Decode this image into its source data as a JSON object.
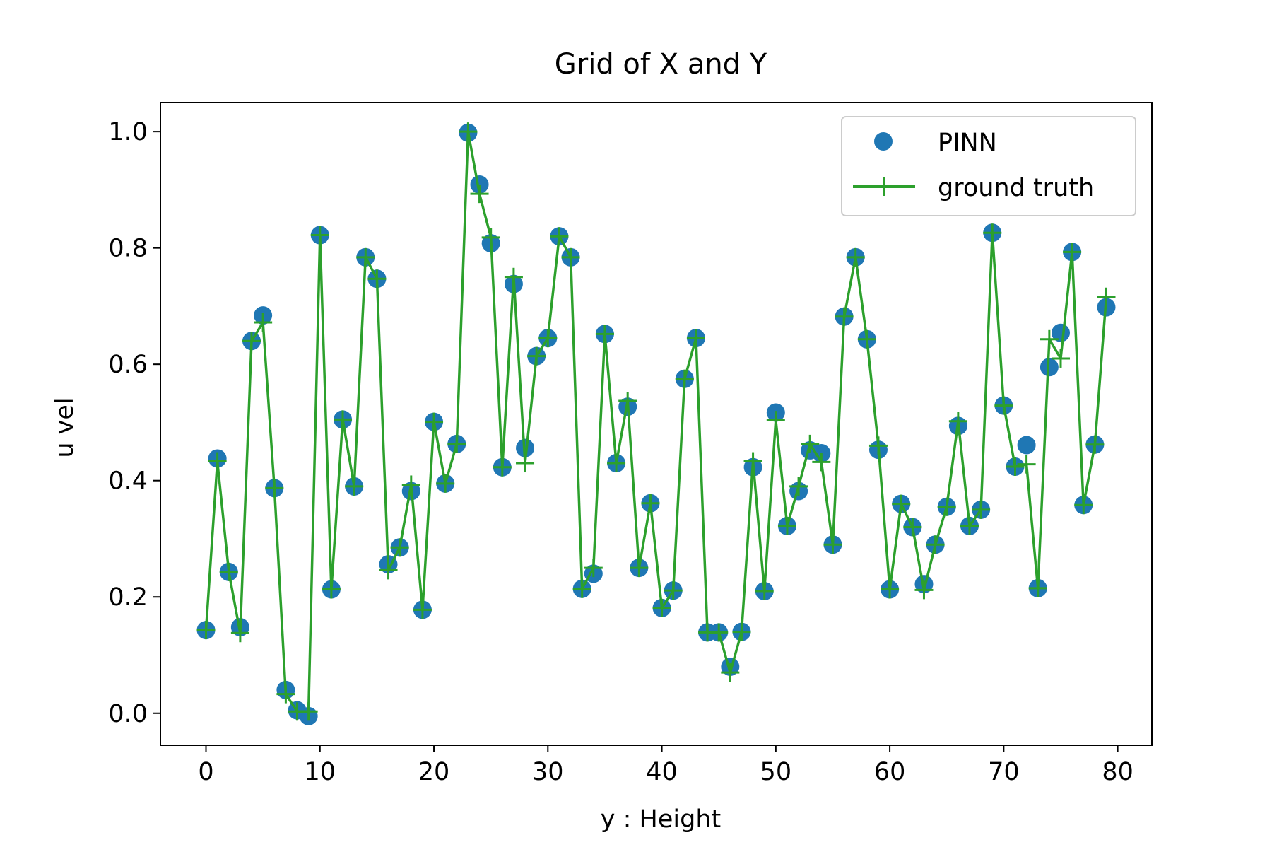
{
  "chart_data": {
    "type": "scatter",
    "title": "Grid of X and Y",
    "xlabel": "y : Height",
    "ylabel": "u vel",
    "xlim": [
      -4,
      83
    ],
    "ylim": [
      -0.055,
      1.05
    ],
    "xticks": [
      "0",
      "10",
      "20",
      "30",
      "40",
      "50",
      "60",
      "70",
      "80"
    ],
    "yticks": [
      "0.0",
      "0.2",
      "0.4",
      "0.6",
      "0.8",
      "1.0"
    ],
    "grid": false,
    "legend_position": "top-right",
    "series": [
      {
        "name": "PINN",
        "marker": "circle",
        "color": "#1f77b4",
        "x": [
          0,
          1,
          2,
          3,
          4,
          5,
          6,
          7,
          8,
          9,
          10,
          11,
          12,
          13,
          14,
          15,
          16,
          17,
          18,
          19,
          20,
          21,
          22,
          23,
          24,
          25,
          26,
          27,
          28,
          29,
          30,
          31,
          32,
          33,
          34,
          35,
          36,
          37,
          38,
          39,
          40,
          41,
          42,
          43,
          44,
          45,
          46,
          47,
          48,
          49,
          50,
          51,
          52,
          53,
          54,
          55,
          56,
          57,
          58,
          59,
          60,
          61,
          62,
          63,
          64,
          65,
          66,
          67,
          68,
          69,
          70,
          71,
          72,
          73,
          74,
          75,
          76,
          77,
          78,
          79
        ],
        "y": [
          0.143,
          0.438,
          0.243,
          0.148,
          0.64,
          0.684,
          0.387,
          0.04,
          0.005,
          -0.005,
          0.822,
          0.213,
          0.505,
          0.39,
          0.784,
          0.747,
          0.256,
          0.285,
          0.382,
          0.178,
          0.501,
          0.395,
          0.463,
          0.998,
          0.909,
          0.808,
          0.423,
          0.738,
          0.456,
          0.614,
          0.645,
          0.82,
          0.784,
          0.214,
          0.24,
          0.652,
          0.43,
          0.527,
          0.25,
          0.361,
          0.181,
          0.211,
          0.575,
          0.645,
          0.139,
          0.139,
          0.08,
          0.14,
          0.423,
          0.21,
          0.517,
          0.322,
          0.382,
          0.452,
          0.447,
          0.29,
          0.682,
          0.784,
          0.643,
          0.453,
          0.213,
          0.36,
          0.32,
          0.222,
          0.29,
          0.355,
          0.494,
          0.322,
          0.35,
          0.826,
          0.529,
          0.424,
          0.461,
          0.215,
          0.595,
          0.654,
          0.793,
          0.358,
          0.462,
          0.698
        ]
      },
      {
        "name": "ground truth",
        "marker": "plus",
        "color": "#2ca02c",
        "x": [
          0,
          1,
          2,
          3,
          4,
          5,
          6,
          7,
          8,
          9,
          10,
          11,
          12,
          13,
          14,
          15,
          16,
          17,
          18,
          19,
          20,
          21,
          22,
          23,
          24,
          25,
          26,
          27,
          28,
          29,
          30,
          31,
          32,
          33,
          34,
          35,
          36,
          37,
          38,
          39,
          40,
          41,
          42,
          43,
          44,
          45,
          46,
          47,
          48,
          49,
          50,
          51,
          52,
          53,
          54,
          55,
          56,
          57,
          58,
          59,
          60,
          61,
          62,
          63,
          64,
          65,
          66,
          67,
          68,
          69,
          70,
          71,
          72,
          73,
          74,
          75,
          76,
          77,
          78,
          79
        ],
        "y": [
          0.143,
          0.433,
          0.243,
          0.138,
          0.64,
          0.672,
          0.387,
          0.033,
          0.003,
          0.003,
          0.822,
          0.213,
          0.505,
          0.39,
          0.784,
          0.747,
          0.246,
          0.285,
          0.393,
          0.178,
          0.501,
          0.395,
          0.463,
          1.0,
          0.893,
          0.818,
          0.423,
          0.75,
          0.43,
          0.614,
          0.645,
          0.82,
          0.784,
          0.214,
          0.25,
          0.652,
          0.43,
          0.537,
          0.25,
          0.361,
          0.181,
          0.211,
          0.575,
          0.645,
          0.139,
          0.139,
          0.07,
          0.14,
          0.433,
          0.21,
          0.504,
          0.322,
          0.39,
          0.463,
          0.432,
          0.29,
          0.682,
          0.784,
          0.643,
          0.46,
          0.213,
          0.36,
          0.32,
          0.212,
          0.29,
          0.355,
          0.502,
          0.322,
          0.35,
          0.826,
          0.529,
          0.424,
          0.428,
          0.215,
          0.643,
          0.61,
          0.793,
          0.358,
          0.462,
          0.716
        ]
      }
    ]
  }
}
